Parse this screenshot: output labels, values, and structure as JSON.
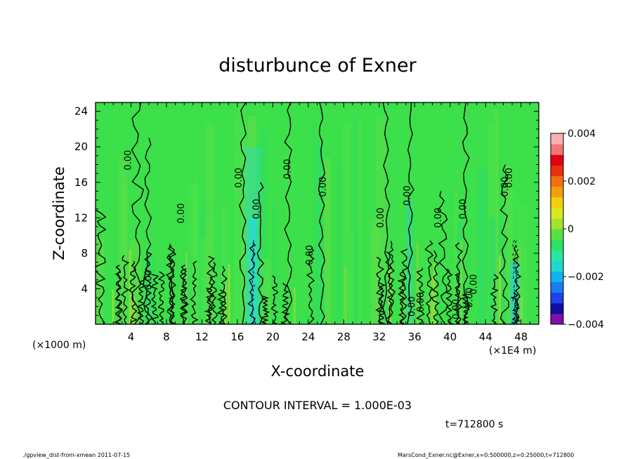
{
  "chart_data": {
    "type": "heatmap",
    "title": "disturbunce of Exner",
    "xlabel": "X-coordinate",
    "ylabel": "Z-coordinate",
    "x_unit_left": "(×1000 m)",
    "x_unit_right": "(×1E4 m)",
    "xlim": [
      0,
      50
    ],
    "ylim": [
      0,
      25
    ],
    "x_ticks": [
      4,
      8,
      12,
      16,
      20,
      24,
      28,
      32,
      36,
      40,
      44,
      48
    ],
    "y_ticks": [
      4,
      8,
      12,
      16,
      20,
      24
    ],
    "colorbar": {
      "min": -0.004,
      "max": 0.004,
      "tick_labels": [
        "0.004",
        "0.002",
        "0",
        "−0.002",
        "−0.004"
      ],
      "tick_values": [
        0.004,
        0.002,
        0,
        -0.002,
        -0.004
      ],
      "colors": [
        "#7f0fa8",
        "#1010a0",
        "#2040e8",
        "#1a7cf0",
        "#10b4f0",
        "#20d8d0",
        "#28e6a0",
        "#30e060",
        "#58e040",
        "#a8e030",
        "#d8e820",
        "#f0d010",
        "#f0a010",
        "#f07010",
        "#e83010",
        "#e00010",
        "#f07878",
        "#f8b0b0"
      ]
    },
    "contour_interval_text": "CONTOUR INTERVAL = 1.000E-03",
    "contour_label": "0.00",
    "contour_label_positions": [
      [
        4,
        18.5
      ],
      [
        6.3,
        5
      ],
      [
        10,
        12.5
      ],
      [
        16.5,
        16.5
      ],
      [
        18.5,
        13
      ],
      [
        22,
        17.5
      ],
      [
        24.5,
        7.8
      ],
      [
        26,
        15.5
      ],
      [
        32.5,
        12
      ],
      [
        35.5,
        14.5
      ],
      [
        36,
        2
      ],
      [
        37,
        2.5
      ],
      [
        39,
        12
      ],
      [
        41,
        1.7
      ],
      [
        41.8,
        13
      ],
      [
        42.5,
        3
      ],
      [
        43,
        4.5
      ],
      [
        46.5,
        15.5
      ],
      [
        47,
        16.5
      ]
    ],
    "time_label": "t=712800 s",
    "footer_left": "./gpview_dist-from-xmean  2011-07-15",
    "footer_right": "MarsCond_Exner.nc@Exner,x=0:500000,z=0:25000,t=712800"
  }
}
